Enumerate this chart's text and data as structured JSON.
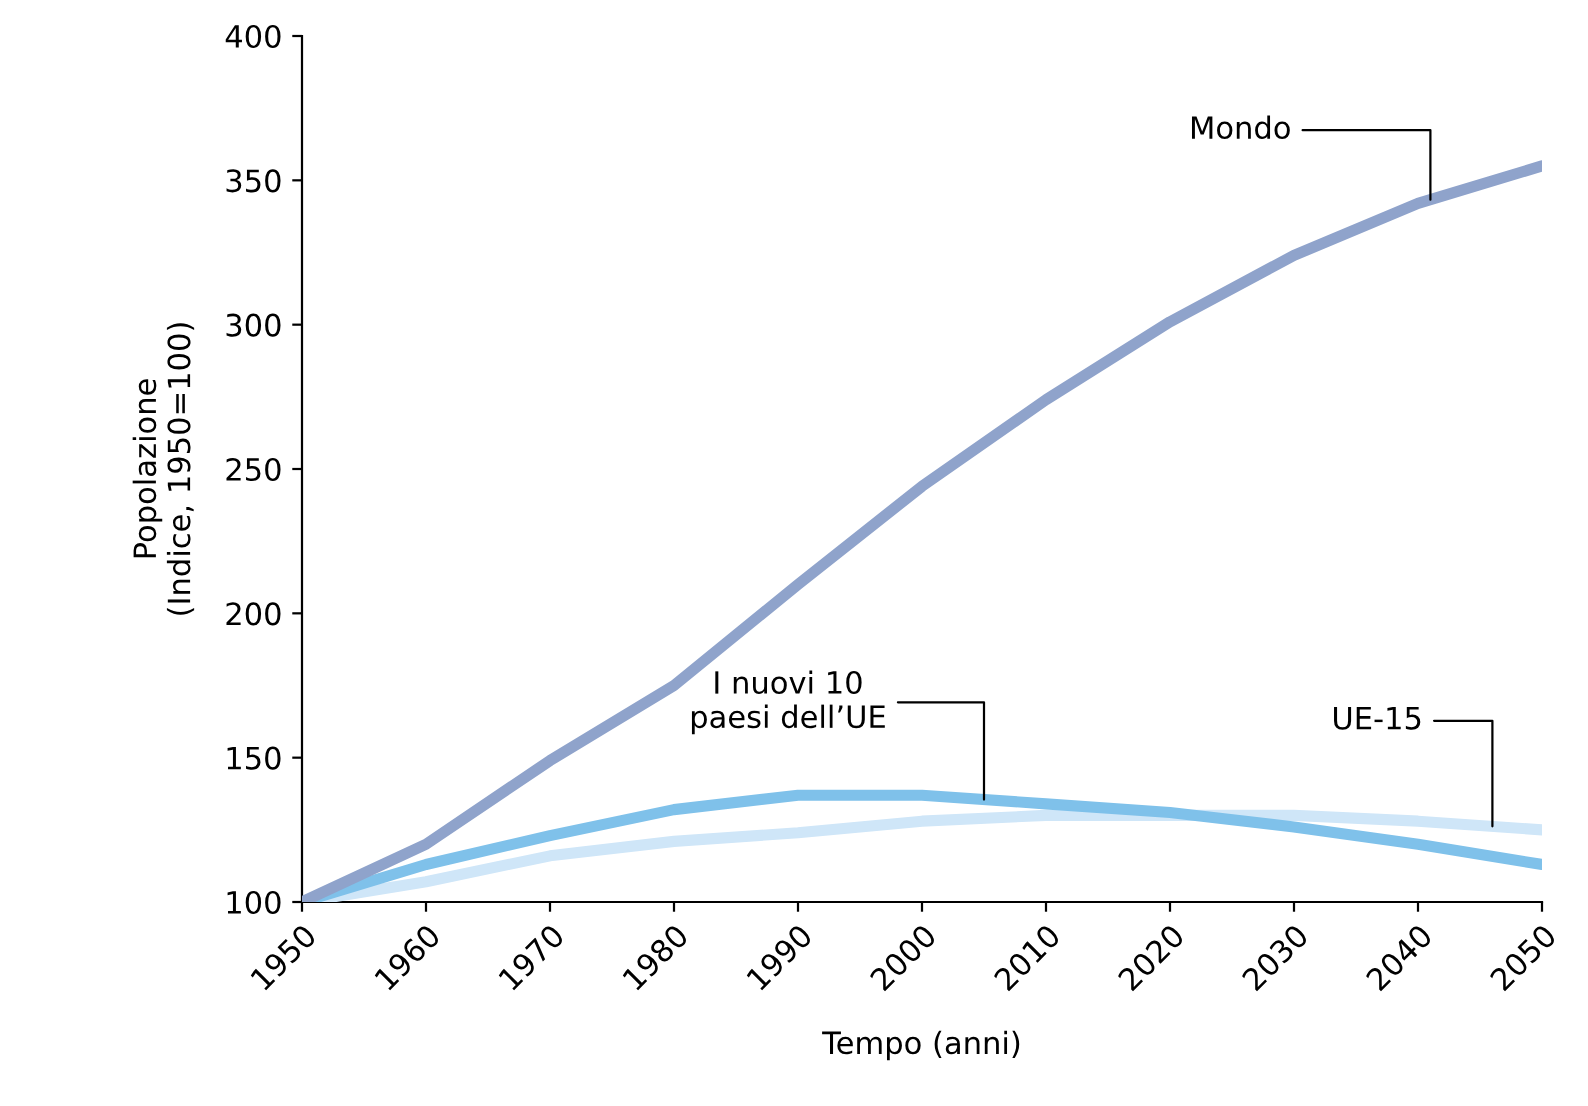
{
  "chart_data": {
    "type": "line",
    "xlabel": "Tempo (anni)",
    "ylabel": "Popolazione\n(Indice, 1950=100)",
    "x": [
      1950,
      1960,
      1970,
      1980,
      1990,
      2000,
      2010,
      2020,
      2030,
      2040,
      2050
    ],
    "series": [
      {
        "name": "Mondo",
        "color": "#8fa3cb",
        "values": [
          100,
          120,
          149,
          175,
          210,
          244,
          274,
          301,
          324,
          342,
          355
        ]
      },
      {
        "name": "I nuovi 10\npaesi dell’UE",
        "color": "#7fc1ea",
        "values": [
          100,
          113,
          123,
          132,
          137,
          137,
          134,
          131,
          126,
          120,
          113
        ]
      },
      {
        "name": "UE-15",
        "color": "#cfe6f8",
        "values": [
          100,
          107,
          116,
          121,
          124,
          128,
          130,
          130,
          130,
          128,
          125
        ]
      }
    ],
    "xlim": [
      1950,
      2050
    ],
    "xticks": [
      1950,
      1960,
      1970,
      1980,
      1990,
      2000,
      2010,
      2020,
      2030,
      2040,
      2050
    ],
    "ylim": [
      100,
      400
    ],
    "yticks": [
      100,
      150,
      200,
      250,
      300,
      350,
      400
    ],
    "grid": false,
    "legend": false,
    "marker": "none",
    "line_style": "solid"
  }
}
